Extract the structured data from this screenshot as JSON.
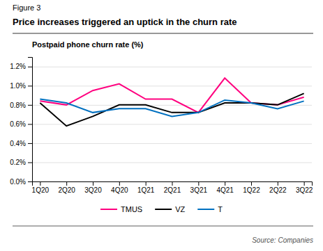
{
  "chart_data": {
    "type": "line",
    "title": "Price increases triggered an uptick in the churn rate",
    "subtitle": "Postpaid  phone churn rate  (%)",
    "annotations": [
      "Figure 3",
      "Source: Companies"
    ],
    "categories": [
      "1Q20",
      "2Q20",
      "3Q20",
      "4Q20",
      "1Q21",
      "2Q21",
      "3Q21",
      "4Q21",
      "1Q22",
      "2Q22",
      "3Q22"
    ],
    "series": [
      {
        "name": "TMUS",
        "color": "#FF007F",
        "values": [
          0.0084,
          0.008,
          0.0095,
          0.0102,
          0.0086,
          0.0086,
          0.0072,
          0.0108,
          0.0082,
          0.008,
          0.0088
        ]
      },
      {
        "name": "VZ",
        "color": "#000000",
        "values": [
          0.0082,
          0.0058,
          0.0068,
          0.008,
          0.008,
          0.0072,
          0.0072,
          0.0082,
          0.0082,
          0.008,
          0.0092
        ]
      },
      {
        "name": "T",
        "color": "#0070C0",
        "values": [
          0.0086,
          0.0082,
          0.0072,
          0.0076,
          0.0076,
          0.0068,
          0.0072,
          0.0085,
          0.0082,
          0.0076,
          0.0084
        ]
      }
    ],
    "ylim": [
      0.0,
      0.013
    ],
    "yticks": [
      {
        "value": 0.0,
        "label": "0.0%"
      },
      {
        "value": 0.002,
        "label": "0.2%"
      },
      {
        "value": 0.004,
        "label": "0.4%"
      },
      {
        "value": 0.006,
        "label": "0.6%"
      },
      {
        "value": 0.008,
        "label": "0.8%"
      },
      {
        "value": 0.01,
        "label": "1.0%"
      },
      {
        "value": 0.012,
        "label": "1.2%"
      }
    ],
    "grid": true,
    "legend": "bottom"
  }
}
